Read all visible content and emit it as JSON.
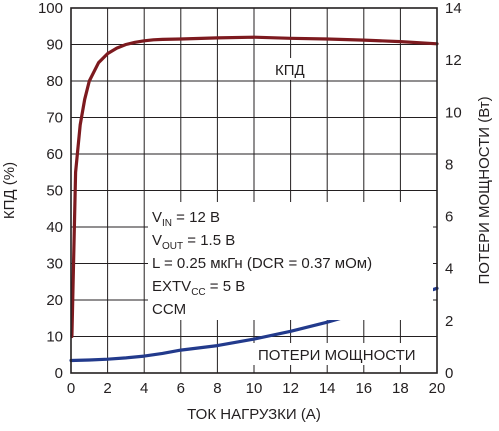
{
  "chart_data": {
    "type": "line",
    "xlabel": "ТОК НАГРУЗКИ (А)",
    "ylabel_left": "КПД (%)",
    "ylabel_right": "ПОТЕРИ МОЩНОСТИ (Вт)",
    "xlim": [
      0,
      20
    ],
    "ylim_left": [
      0,
      100
    ],
    "ylim_right": [
      0,
      14
    ],
    "x_ticks": [
      0,
      2,
      4,
      6,
      8,
      10,
      12,
      14,
      16,
      18,
      20
    ],
    "y_ticks_left": [
      0,
      10,
      20,
      30,
      40,
      50,
      60,
      70,
      80,
      90,
      100
    ],
    "y_ticks_right": [
      0,
      2,
      4,
      6,
      8,
      10,
      12,
      14
    ],
    "grid": true,
    "series": [
      {
        "name": "КПД",
        "axis": "left",
        "color": "#7d1a1f",
        "points": [
          [
            0.05,
            10
          ],
          [
            0.25,
            55
          ],
          [
            0.5,
            68
          ],
          [
            0.75,
            75
          ],
          [
            1,
            80
          ],
          [
            1.5,
            85
          ],
          [
            2,
            87.5
          ],
          [
            2.5,
            89
          ],
          [
            3,
            90
          ],
          [
            3.5,
            90.6
          ],
          [
            4,
            91
          ],
          [
            4.5,
            91.3
          ],
          [
            5,
            91.4
          ],
          [
            6,
            91.5
          ],
          [
            8,
            91.8
          ],
          [
            10,
            92
          ],
          [
            12,
            91.7
          ],
          [
            14,
            91.5
          ],
          [
            16,
            91.2
          ],
          [
            18,
            90.8
          ],
          [
            20,
            90.2
          ]
        ]
      },
      {
        "name": "ПОТЕРИ МОЩНОСТИ",
        "axis": "right",
        "color": "#223a8c",
        "points": [
          [
            0,
            0.48
          ],
          [
            1,
            0.5
          ],
          [
            2,
            0.53
          ],
          [
            3,
            0.58
          ],
          [
            4,
            0.65
          ],
          [
            5,
            0.75
          ],
          [
            6,
            0.88
          ],
          [
            8,
            1.05
          ],
          [
            10,
            1.3
          ],
          [
            12,
            1.6
          ],
          [
            14,
            1.95
          ],
          [
            16,
            2.35
          ],
          [
            18,
            2.8
          ],
          [
            20,
            3.25
          ]
        ]
      }
    ],
    "annotations": {
      "efficiency_label": "КПД",
      "loss_label": "ПОТЕРИ МОЩНОСТИ",
      "conditions": [
        {
          "main": "V",
          "sub": "IN",
          "rest": " = 12 В"
        },
        {
          "main": "V",
          "sub": "OUT",
          "rest": " = 1.5 В"
        },
        {
          "main": "L = 0.25 мкГн (DCR = 0.37 мОм)",
          "sub": "",
          "rest": ""
        },
        {
          "main": "EXTV",
          "sub": "CC",
          "rest": " = 5 В"
        },
        {
          "main": "CCM",
          "sub": "",
          "rest": ""
        }
      ]
    }
  }
}
